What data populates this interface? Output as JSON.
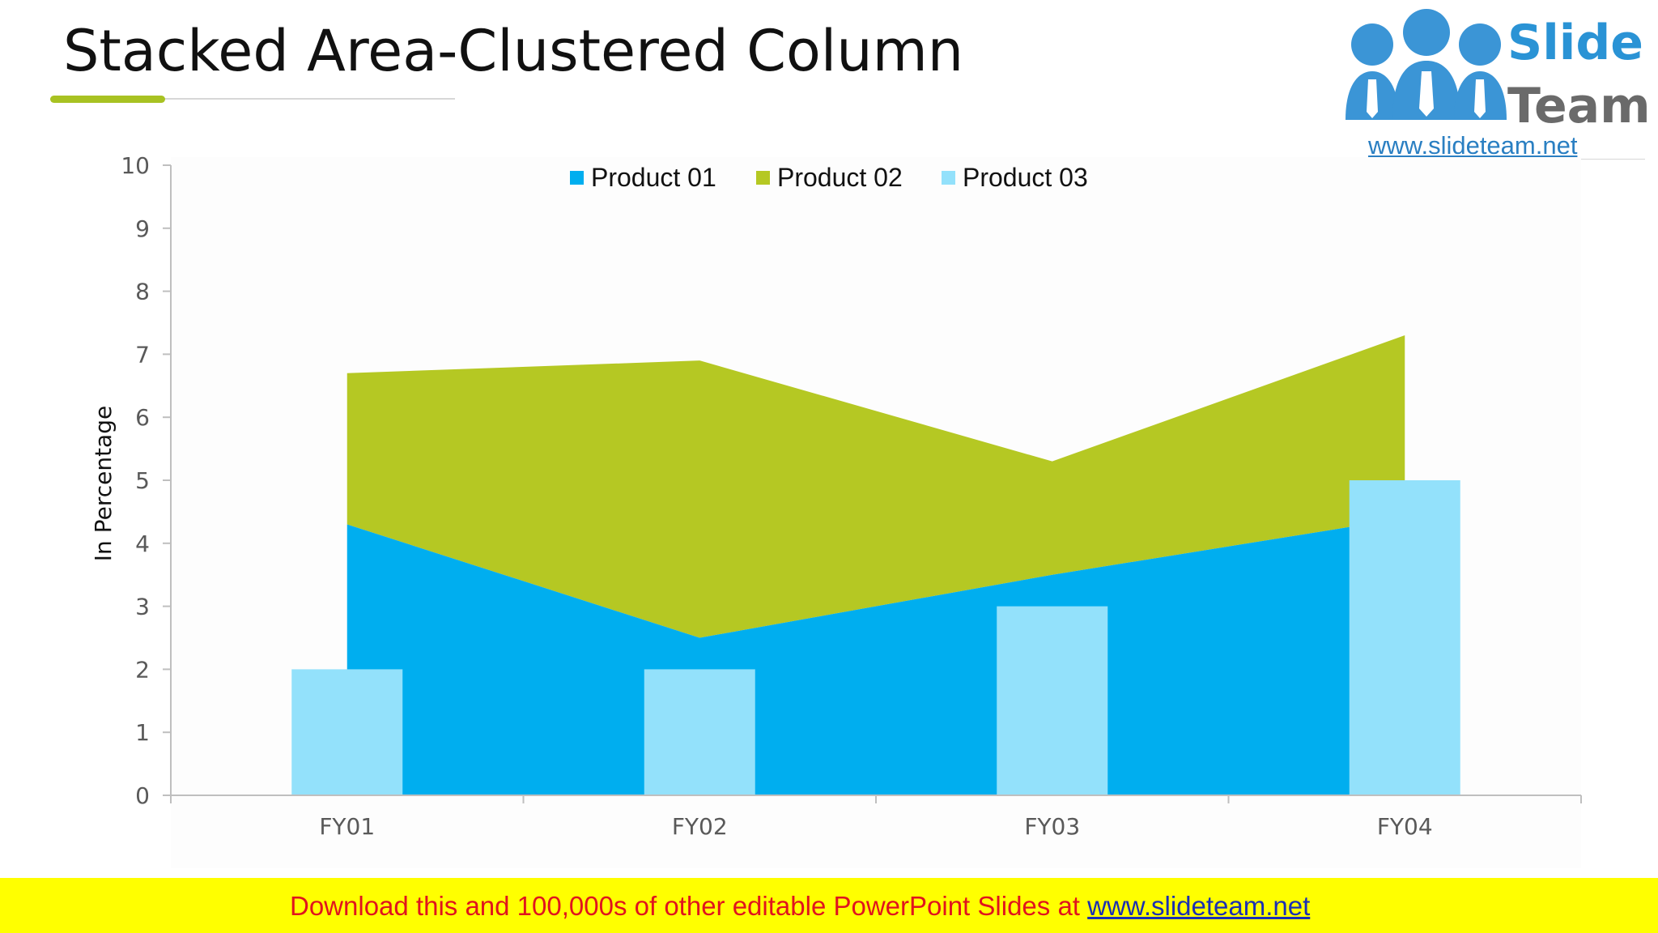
{
  "title": "Stacked Area-Clustered Column",
  "logo": {
    "word1": "Slide",
    "word2": "Team",
    "url": "www.slideteam.net"
  },
  "banner": {
    "text": "Download this and 100,000s of other editable PowerPoint Slides at ",
    "link": "www.slideteam.net"
  },
  "colors": {
    "product01": "#00aeef",
    "product02": "#b5c823",
    "product03": "#93e1fb",
    "title_accent": "#a8c222",
    "banner_bg": "#ffff00",
    "banner_text": "#e0141e"
  },
  "chart_data": {
    "type": "area",
    "title": "",
    "xlabel": "",
    "ylabel": "In Percentage",
    "categories": [
      "FY01",
      "FY02",
      "FY03",
      "FY04"
    ],
    "ylim": [
      0,
      10
    ],
    "yticks": [
      0,
      1,
      2,
      3,
      4,
      5,
      6,
      7,
      8,
      9,
      10
    ],
    "legend_position": "top-center",
    "grid": false,
    "series": [
      {
        "name": "Product 01",
        "kind": "stacked-area",
        "values": [
          4.3,
          2.5,
          3.5,
          4.4
        ]
      },
      {
        "name": "Product 02",
        "kind": "stacked-area",
        "values": [
          2.4,
          4.4,
          1.8,
          2.9
        ]
      },
      {
        "name": "Product 03",
        "kind": "column",
        "values": [
          2,
          2,
          3,
          5
        ]
      }
    ]
  }
}
